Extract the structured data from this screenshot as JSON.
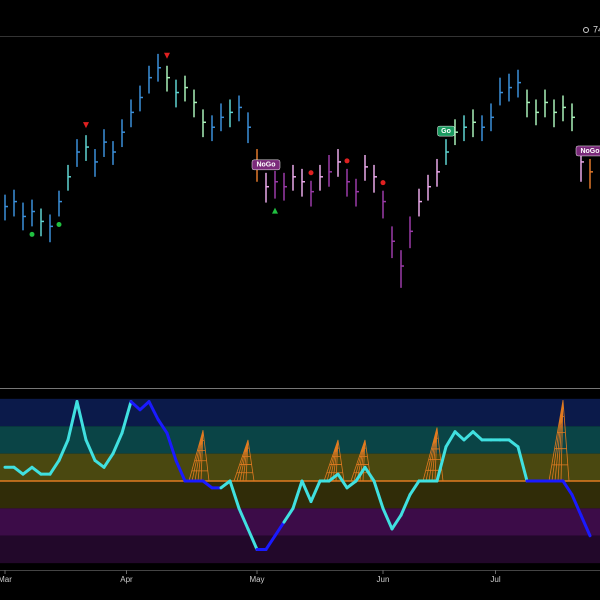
{
  "header": {
    "value_text": "74"
  },
  "chart_data": [
    {
      "type": "ohlc",
      "ylim": [
        0,
        350
      ],
      "high": [
        192,
        197,
        184,
        187,
        178,
        172,
        196,
        222,
        248,
        252,
        238,
        258,
        246,
        268,
        288,
        302,
        322,
        334,
        322,
        308,
        312,
        298,
        278,
        272,
        284,
        288,
        292,
        275,
        238,
        214,
        216,
        214,
        222,
        218,
        206,
        222,
        232,
        238,
        218,
        208,
        232,
        222,
        196,
        160,
        136,
        170,
        198,
        212,
        228,
        248,
        268,
        272,
        278,
        272,
        284,
        310,
        314,
        318,
        298,
        288,
        298,
        288,
        292,
        284,
        240,
        228
      ],
      "low": [
        166,
        170,
        156,
        160,
        150,
        144,
        170,
        196,
        220,
        226,
        210,
        230,
        222,
        240,
        260,
        276,
        294,
        306,
        296,
        280,
        286,
        270,
        250,
        246,
        256,
        260,
        266,
        244,
        205,
        184,
        188,
        186,
        196,
        190,
        180,
        196,
        200,
        210,
        190,
        180,
        206,
        194,
        168,
        128,
        98,
        138,
        170,
        186,
        200,
        222,
        242,
        246,
        250,
        246,
        256,
        282,
        286,
        290,
        270,
        262,
        270,
        260,
        266,
        256,
        205,
        198
      ],
      "close": [
        180,
        185,
        170,
        175,
        165,
        160,
        185,
        210,
        235,
        240,
        225,
        245,
        235,
        255,
        275,
        290,
        310,
        320,
        310,
        295,
        300,
        285,
        265,
        260,
        270,
        275,
        280,
        260,
        220,
        200,
        205,
        200,
        210,
        205,
        195,
        210,
        215,
        225,
        205,
        195,
        220,
        210,
        185,
        145,
        120,
        155,
        185,
        200,
        215,
        235,
        255,
        260,
        265,
        260,
        270,
        295,
        300,
        305,
        285,
        275,
        285,
        275,
        280,
        270,
        225,
        215
      ],
      "colors": [
        "#3b8fd9",
        "#3b8fd9",
        "#3b8fd9",
        "#3b8fd9",
        "#5fd3d0",
        "#3b8fd9",
        "#3b8fd9",
        "#5fd3d0",
        "#3b8fd9",
        "#5fd3d0",
        "#3b8fd9",
        "#3b8fd9",
        "#3b8fd9",
        "#3b8fd9",
        "#3b8fd9",
        "#3b8fd9",
        "#3b8fd9",
        "#3b8fd9",
        "#a8f0b8",
        "#5fd3d0",
        "#a8f0b8",
        "#a8f0b8",
        "#a8f0b8",
        "#3b8fd9",
        "#3b8fd9",
        "#5fd3d0",
        "#3b8fd9",
        "#3b8fd9",
        "#e0782a",
        "#e8a8e8",
        "#9a3aa8",
        "#9a3aa8",
        "#e8a8e8",
        "#e8a8e8",
        "#9a3aa8",
        "#e8a8e8",
        "#9a3aa8",
        "#e8a8e8",
        "#9a3aa8",
        "#9a3aa8",
        "#e8a8e8",
        "#e8a8e8",
        "#9a3aa8",
        "#9a3aa8",
        "#9a3aa8",
        "#9a3aa8",
        "#e8a8e8",
        "#e8a8e8",
        "#e8a8e8",
        "#5fd3d0",
        "#a8f0b8",
        "#5fd3d0",
        "#a8f0b8",
        "#3b8fd9",
        "#3b8fd9",
        "#3b8fd9",
        "#3b8fd9",
        "#3b8fd9",
        "#a8f0b8",
        "#a8f0b8",
        "#a8f0b8",
        "#a8f0b8",
        "#a8f0b8",
        "#a8f0b8",
        "#e8a8e8",
        "#e0782a"
      ],
      "signals": [
        {
          "index": 3,
          "kind": "buy-dot"
        },
        {
          "index": 6,
          "kind": "buy-dot"
        },
        {
          "index": 9,
          "kind": "sell"
        },
        {
          "index": 18,
          "kind": "sell"
        },
        {
          "index": 30,
          "kind": "buy"
        },
        {
          "index": 34,
          "kind": "sell-dot"
        },
        {
          "index": 38,
          "kind": "sell-dot"
        },
        {
          "index": 42,
          "kind": "sell-dot"
        }
      ],
      "labels": [
        {
          "text": "NoGo",
          "index": 29,
          "color": "#7a2a7a"
        },
        {
          "text": "Go",
          "index": 49,
          "color": "#1a9a60"
        },
        {
          "text": "NoGo",
          "index": 65,
          "color": "#7a2a7a"
        }
      ]
    },
    {
      "type": "oscillator",
      "ylim": [
        -6.5,
        6.5
      ],
      "bands": [
        {
          "from": 4,
          "to": 6,
          "color": "#0b1a4a"
        },
        {
          "from": 2,
          "to": 4,
          "color": "#0a4446"
        },
        {
          "from": 0,
          "to": 2,
          "color": "#4a4810"
        },
        {
          "from": -2,
          "to": 0,
          "color": "#302c08"
        },
        {
          "from": -4,
          "to": -2,
          "color": "#3c0c48"
        },
        {
          "from": -6,
          "to": -4,
          "color": "#22082a"
        }
      ],
      "zero_color": "#e07a20",
      "values": [
        1,
        1,
        0.5,
        1,
        0.5,
        0.5,
        1.5,
        3,
        5.8,
        3,
        1.5,
        1,
        2,
        3.5,
        5.8,
        5.2,
        5.8,
        4.5,
        3.5,
        1.5,
        0,
        0,
        0,
        -0.5,
        -0.5,
        0,
        -2,
        -3.5,
        -5,
        -5,
        -4,
        -3,
        -2,
        0,
        -1.5,
        0,
        0,
        0.5,
        -0.5,
        0,
        1,
        0,
        -2,
        -3.5,
        -2.5,
        -1,
        0,
        0,
        0,
        2.5,
        3.6,
        3,
        3.6,
        3,
        3,
        3,
        3,
        2.5,
        0,
        0,
        0,
        0,
        0,
        -1,
        -2.5,
        -4
      ],
      "colors": [
        "#40e0e0",
        "#40e0e0",
        "#40e0e0",
        "#40e0e0",
        "#40e0e0",
        "#40e0e0",
        "#40e0e0",
        "#40e0e0",
        "#40e0e0",
        "#40e0e0",
        "#40e0e0",
        "#40e0e0",
        "#40e0e0",
        "#40e0e0",
        "#40e0e0",
        "#1a1aff",
        "#1a1aff",
        "#1a1aff",
        "#1a1aff",
        "#1a1aff",
        "#1a1aff",
        "#1a1aff",
        "#1a1aff",
        "#1a1aff",
        "#1a1aff",
        "#40e0e0",
        "#40e0e0",
        "#40e0e0",
        "#40e0e0",
        "#1a1aff",
        "#1a1aff",
        "#1a1aff",
        "#40e0e0",
        "#40e0e0",
        "#40e0e0",
        "#40e0e0",
        "#40e0e0",
        "#40e0e0",
        "#40e0e0",
        "#40e0e0",
        "#40e0e0",
        "#40e0e0",
        "#40e0e0",
        "#40e0e0",
        "#40e0e0",
        "#40e0e0",
        "#40e0e0",
        "#40e0e0",
        "#40e0e0",
        "#40e0e0",
        "#40e0e0",
        "#40e0e0",
        "#40e0e0",
        "#40e0e0",
        "#40e0e0",
        "#40e0e0",
        "#40e0e0",
        "#40e0e0",
        "#40e0e0",
        "#1a1aff",
        "#1a1aff",
        "#1a1aff",
        "#1a1aff",
        "#1a1aff",
        "#1a1aff",
        "#1a1aff"
      ],
      "spikes": [
        {
          "index": 22,
          "value": 3.7
        },
        {
          "index": 27,
          "value": 3
        },
        {
          "index": 37,
          "value": 3
        },
        {
          "index": 40,
          "value": 3
        },
        {
          "index": 48,
          "value": 3.9
        },
        {
          "index": 62,
          "value": 5.9
        }
      ],
      "xticks": [
        {
          "value": 0,
          "label": "Mar"
        },
        {
          "value": 13.5,
          "label": "Apr"
        },
        {
          "value": 28,
          "label": "May"
        },
        {
          "value": 42,
          "label": "Jun"
        },
        {
          "value": 54.5,
          "label": "Jul"
        }
      ]
    }
  ]
}
